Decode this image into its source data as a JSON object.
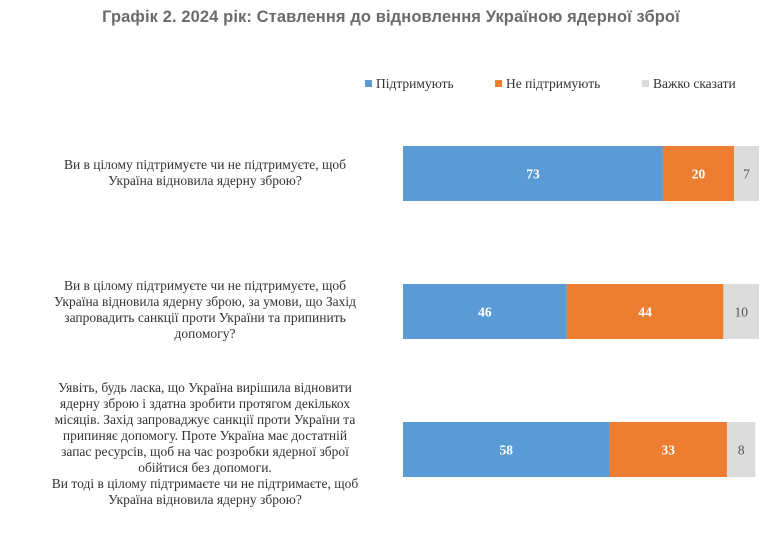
{
  "title": "Графік 2. 2024 рік: Ставлення до відновлення Україною ядерної зброї",
  "colors": {
    "support": "#5b9bd5",
    "not_support": "#ed7d31",
    "hard_to_say": "#dcdcdc"
  },
  "chart_data": {
    "type": "bar",
    "orientation": "horizontal",
    "stacked": true,
    "title": "Графік 2. 2024 рік: Ставлення до відновлення Україною ядерної зброї",
    "categories": [
      "Ви в цілому підтримуєте чи не підтримуєте, щоб\nУкраїна відновила ядерну зброю?",
      "Ви в цілому підтримуєте чи не підтримуєте, щоб\nУкраїна відновила ядерну зброю, за умови, що Захід\nзапровадить санкції проти України та припинить\nдопомогу?",
      "Уявіть, будь ласка, що Україна вирішила відновити\nядерну зброю і здатна зробити протягом декількох\nмісяців. Захід запроваджує санкції проти України та\nприпиняє допомогу. Проте Україна має достатній\nзапас ресурсів, щоб на час розробки ядерної зброї\nобійтися без допомоги.\nВи тоді в цілому підтримаєте чи не підтримаєте, щоб\nУкраїна відновила ядерну зброю?"
    ],
    "series": [
      {
        "name": "Підтримують",
        "values": [
          73,
          46,
          58
        ]
      },
      {
        "name": "Не підтримують",
        "values": [
          20,
          44,
          33
        ]
      },
      {
        "name": "Важко сказати",
        "values": [
          7,
          10,
          8
        ]
      }
    ],
    "xlim": [
      0,
      100
    ],
    "legend": "top-right",
    "grid": false
  }
}
